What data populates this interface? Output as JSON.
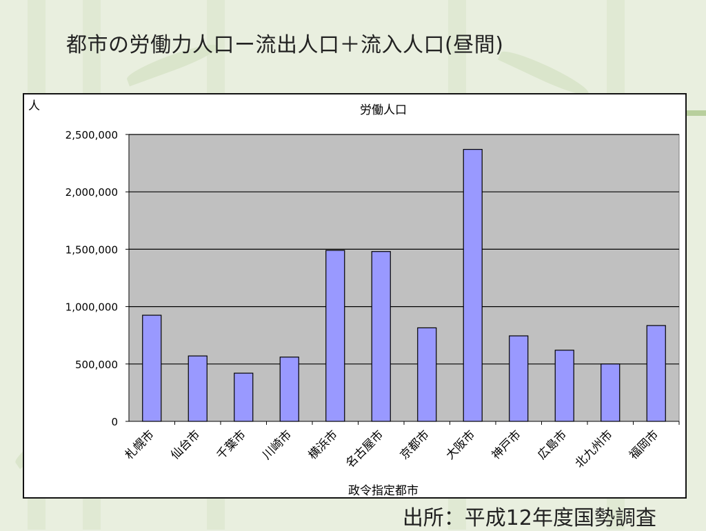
{
  "slide": {
    "title": "都市の労働力人口ー流出人口＋流入人口(昼間)",
    "source": "出所：平成12年度国勢調査"
  },
  "colors": {
    "bar_fill": "#9999ff",
    "bar_stroke": "#000000",
    "plot_bg": "#c0c0c0",
    "grid": "#000000",
    "background": "#e9efdf"
  },
  "chart_data": {
    "type": "bar",
    "title": "労働人口",
    "ylabel": "人",
    "xlabel": "政令指定都市",
    "categories": [
      "札幌市",
      "仙台市",
      "千葉市",
      "川崎市",
      "横浜市",
      "名古屋市",
      "京都市",
      "大阪市",
      "神戸市",
      "広島市",
      "北九州市",
      "福岡市"
    ],
    "values": [
      925000,
      570000,
      420000,
      560000,
      1490000,
      1480000,
      815000,
      2370000,
      745000,
      620000,
      500000,
      835000
    ],
    "ylim": [
      0,
      2500000
    ],
    "yticks": [
      0,
      500000,
      1000000,
      1500000,
      2000000,
      2500000
    ],
    "ytick_labels": [
      "0",
      "500,000",
      "1,000,000",
      "1,500,000",
      "2,000,000",
      "2,500,000"
    ],
    "grid": true,
    "legend": "none"
  }
}
